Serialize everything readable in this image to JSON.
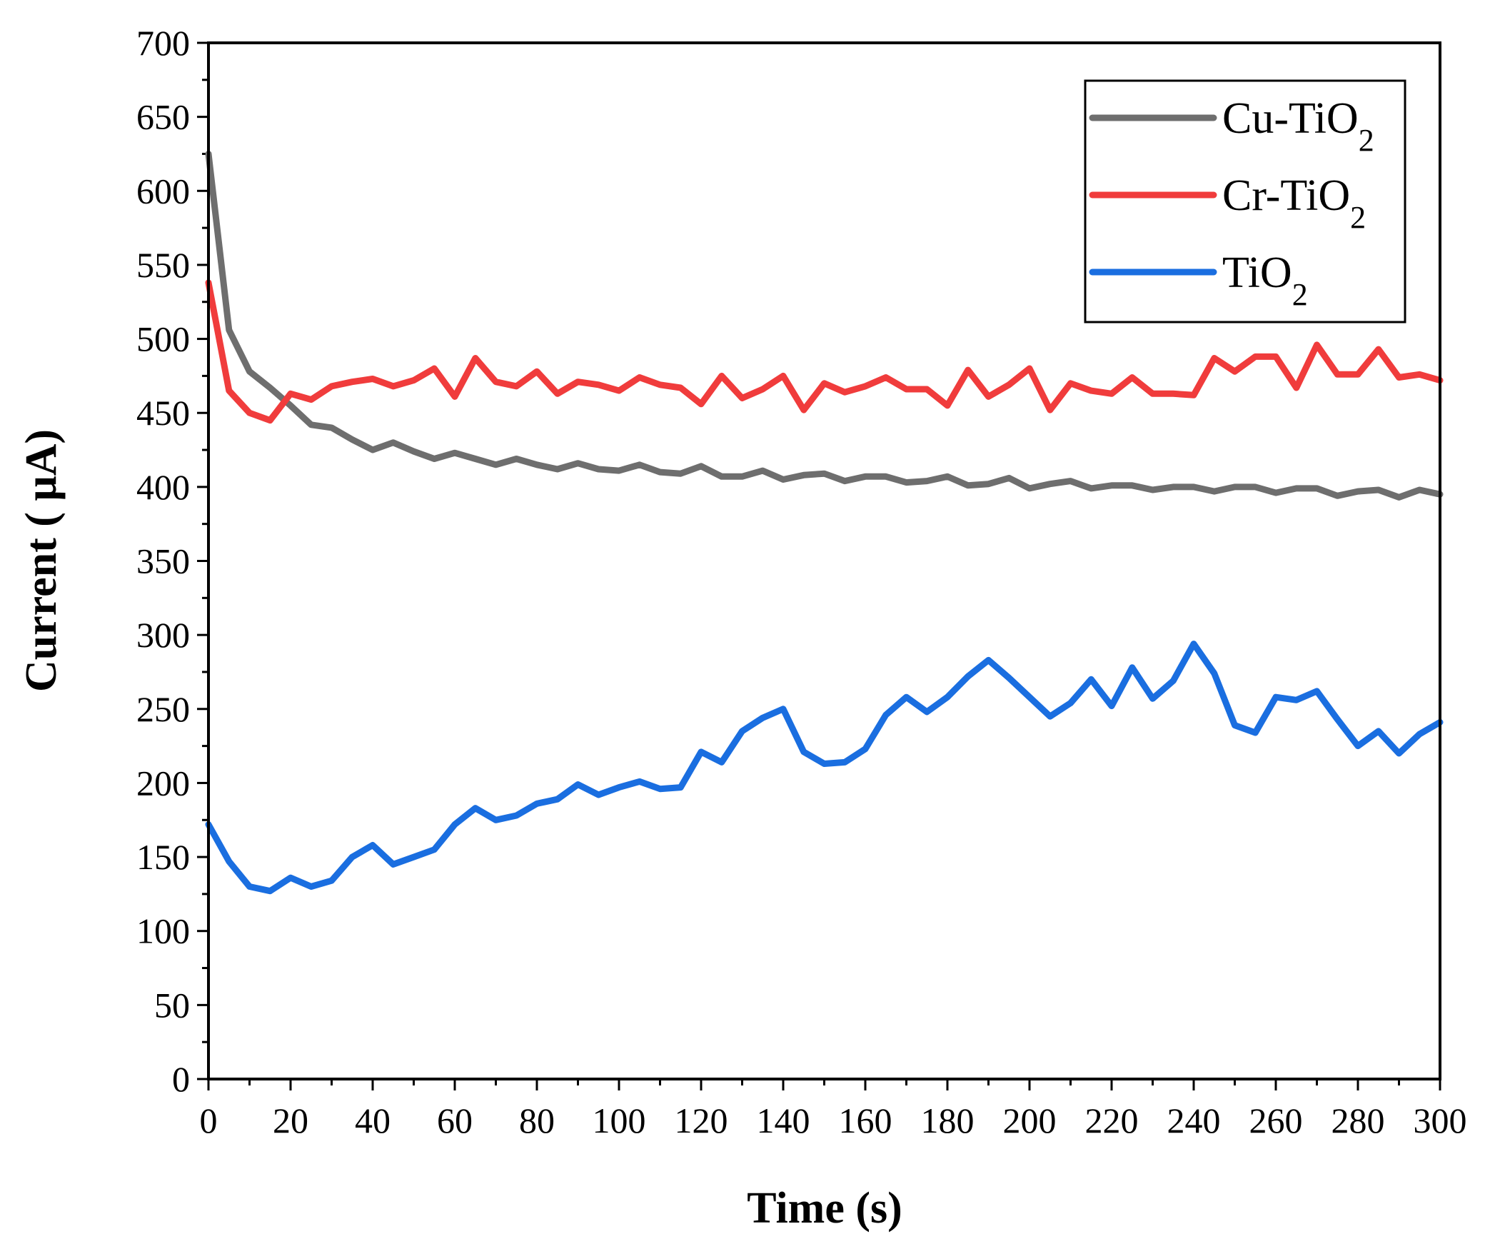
{
  "chart_data": {
    "type": "line",
    "title": "",
    "xlabel": "Time (s)",
    "ylabel": "Current ( μA)",
    "xlim": [
      0,
      300
    ],
    "ylim": [
      0,
      700
    ],
    "xticks": [
      0,
      20,
      40,
      60,
      80,
      100,
      120,
      140,
      160,
      180,
      200,
      220,
      240,
      260,
      280,
      300
    ],
    "yticks": [
      0,
      50,
      100,
      150,
      200,
      250,
      300,
      350,
      400,
      450,
      500,
      550,
      600,
      650,
      700
    ],
    "grid": false,
    "legend_position": "top-right",
    "x": [
      0,
      5,
      10,
      15,
      20,
      25,
      30,
      35,
      40,
      45,
      50,
      55,
      60,
      65,
      70,
      75,
      80,
      85,
      90,
      95,
      100,
      105,
      110,
      115,
      120,
      125,
      130,
      135,
      140,
      145,
      150,
      155,
      160,
      165,
      170,
      175,
      180,
      185,
      190,
      195,
      200,
      205,
      210,
      215,
      220,
      225,
      230,
      235,
      240,
      245,
      250,
      255,
      260,
      265,
      270,
      275,
      280,
      285,
      290,
      295,
      300
    ],
    "series": [
      {
        "name": "Cu-TiO",
        "subscript": "2",
        "color": "#6e6e6e",
        "values": [
          625,
          506,
          478,
          467,
          455,
          442,
          440,
          432,
          425,
          430,
          424,
          419,
          423,
          419,
          415,
          419,
          415,
          412,
          416,
          412,
          411,
          415,
          410,
          409,
          414,
          407,
          407,
          411,
          405,
          408,
          409,
          404,
          407,
          407,
          403,
          404,
          407,
          401,
          402,
          406,
          399,
          402,
          404,
          399,
          401,
          401,
          398,
          400,
          400,
          397,
          400,
          400,
          396,
          399,
          399,
          394,
          397,
          398,
          393,
          398,
          395
        ]
      },
      {
        "name": "Cr-TiO",
        "subscript": "2",
        "color": "#f03c3c",
        "values": [
          538,
          465,
          450,
          445,
          463,
          459,
          468,
          471,
          473,
          468,
          472,
          480,
          461,
          487,
          471,
          468,
          478,
          463,
          471,
          469,
          465,
          474,
          469,
          467,
          456,
          475,
          460,
          466,
          475,
          452,
          470,
          464,
          468,
          474,
          466,
          466,
          455,
          479,
          461,
          469,
          480,
          452,
          470,
          465,
          463,
          474,
          463,
          463,
          462,
          487,
          478,
          488,
          488,
          467,
          496,
          476,
          476,
          493,
          474,
          476,
          472
        ]
      },
      {
        "name": "TiO",
        "subscript": "2",
        "color": "#1a6ee0",
        "values": [
          172,
          147,
          130,
          127,
          136,
          130,
          134,
          150,
          158,
          145,
          150,
          155,
          172,
          183,
          175,
          178,
          186,
          189,
          199,
          192,
          197,
          201,
          196,
          197,
          221,
          214,
          235,
          244,
          250,
          221,
          213,
          214,
          223,
          246,
          258,
          248,
          258,
          272,
          283,
          271,
          258,
          245,
          254,
          270,
          252,
          278,
          257,
          269,
          294,
          274,
          239,
          234,
          258,
          256,
          262,
          243,
          225,
          235,
          220,
          233,
          241
        ]
      }
    ]
  }
}
